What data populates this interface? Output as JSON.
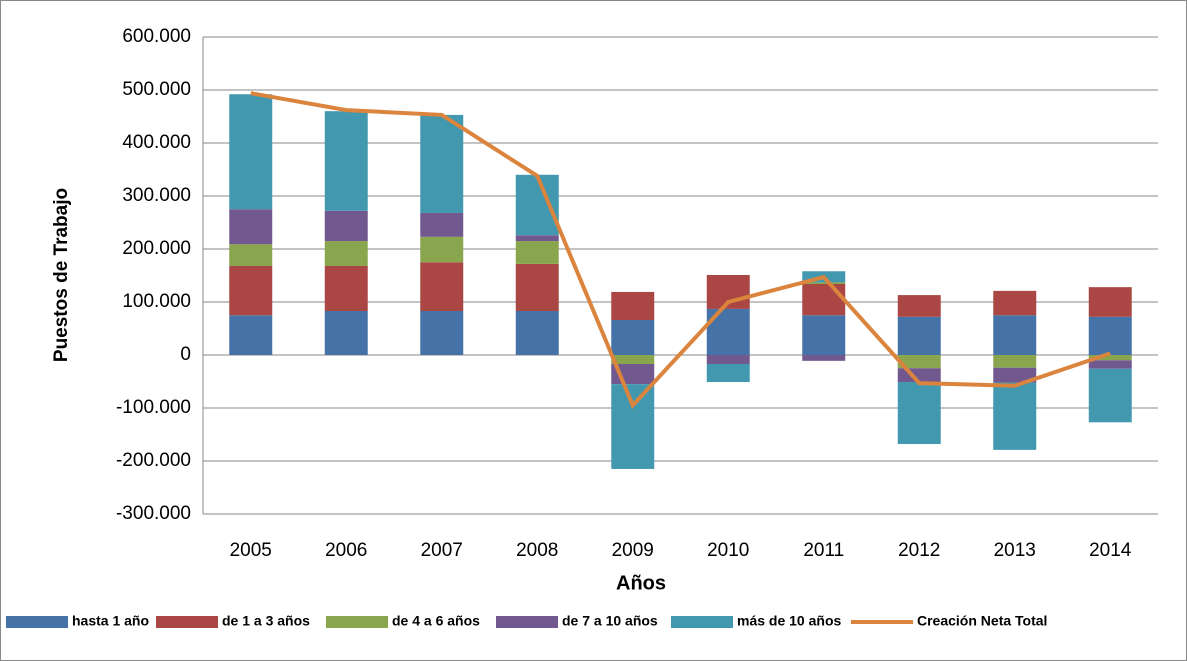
{
  "chart_data": {
    "type": "bar",
    "stacked": true,
    "x_label": "Años",
    "y_label": "Puestos de Trabajo",
    "categories": [
      "2005",
      "2006",
      "2007",
      "2008",
      "2009",
      "2010",
      "2011",
      "2012",
      "2013",
      "2014"
    ],
    "series": [
      {
        "name": "hasta 1 año",
        "color": "#4573a7",
        "values": [
          75000,
          83000,
          83000,
          83000,
          66000,
          87000,
          75000,
          72000,
          75000,
          72000
        ]
      },
      {
        "name": "de 1 a 3 años",
        "color": "#aa4643",
        "values": [
          93000,
          85000,
          92000,
          89000,
          53000,
          64000,
          59000,
          41000,
          46000,
          56000
        ]
      },
      {
        "name": "de 4 a 6 años",
        "color": "#89a54e",
        "values": [
          41000,
          47000,
          48000,
          43000,
          -17000,
          0,
          3000,
          -25000,
          -24000,
          -10000
        ]
      },
      {
        "name": "de 7 a 10 años",
        "color": "#71588f",
        "values": [
          66000,
          57000,
          45000,
          11000,
          -38000,
          -17000,
          -11000,
          -26000,
          -28000,
          -16000
        ]
      },
      {
        "name": "más de 10 años",
        "color": "#4198af",
        "values": [
          217000,
          188000,
          185000,
          114000,
          -160000,
          -34000,
          21000,
          -117000,
          -127000,
          -101000
        ]
      },
      {
        "name": "Creación Neta Total",
        "color": "#db843d",
        "type": "line",
        "values": [
          494000,
          462000,
          453000,
          338000,
          -95000,
          100000,
          147000,
          -53000,
          -58000,
          3000
        ]
      }
    ],
    "ylim": [
      -300000,
      600000
    ],
    "yticks": [
      {
        "value": -300000,
        "label": "-300.000"
      },
      {
        "value": -200000,
        "label": "-200.000"
      },
      {
        "value": -100000,
        "label": "-100.000"
      },
      0,
      {
        "value": 100000,
        "label": "100.000"
      },
      {
        "value": 200000,
        "label": "200.000"
      },
      {
        "value": 300000,
        "label": "300.000"
      },
      {
        "value": 400000,
        "label": "400.000"
      },
      {
        "value": 500000,
        "label": "500.000"
      },
      {
        "value": 600000,
        "label": "600.000"
      }
    ],
    "grid": true,
    "legend": "bottom"
  }
}
